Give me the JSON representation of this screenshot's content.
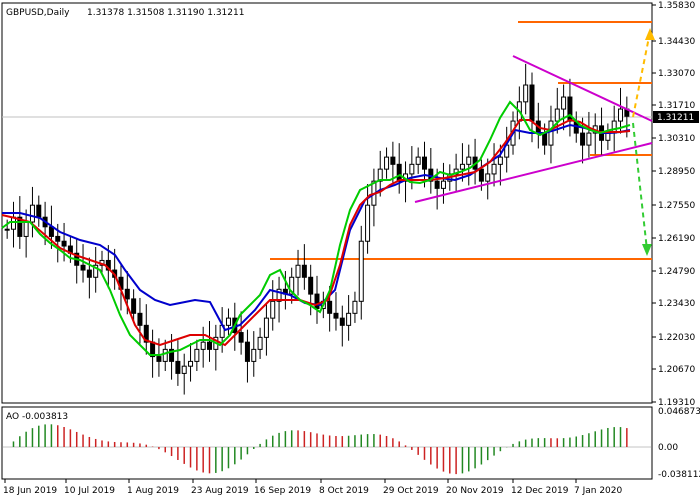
{
  "header": {
    "symbol": "GBPUSD,Daily",
    "ohlc": "1.31378 1.31508 1.31190 1.31211"
  },
  "ao_header": "AO -0.003813",
  "price_labels": [
    "1.35830",
    "1.34430",
    "1.33070",
    "1.31710",
    "1.30310",
    "1.28950",
    "1.27550",
    "1.26190",
    "1.24790",
    "1.23430",
    "1.22030",
    "1.20670",
    "1.19310"
  ],
  "ao_labels": [
    "0.046873",
    "0.00",
    "-0.038112"
  ],
  "current_price": "1.31211",
  "x_labels": [
    "18 Jun 2019",
    "10 Jul 2019",
    "1 Aug 2019",
    "23 Aug 2019",
    "16 Sep 2019",
    "8 Oct 2019",
    "29 Oct 2019",
    "20 Nov 2019",
    "12 Dec 2019",
    "7 Jan 2020"
  ],
  "colors": {
    "bull": "#000000",
    "bear": "#000000",
    "ma_fast": "#00cc00",
    "ma_mid": "#dd0000",
    "ma_slow": "#0000cc",
    "trend": "#cc00cc",
    "level": "#ff6600",
    "ao_up": "#228822",
    "ao_down": "#cc2222",
    "arrow_up": "#ffbb00",
    "arrow_down": "#33cc33"
  },
  "chart_data": {
    "type": "candlestick",
    "title": "GBPUSD,Daily",
    "ylim": [
      1.1931,
      1.3583
    ],
    "levels": [
      1.352,
      1.325,
      1.296,
      1.2525
    ],
    "candles_closes": [
      1.265,
      1.27,
      1.262,
      1.268,
      1.275,
      1.27,
      1.266,
      1.262,
      1.26,
      1.258,
      1.255,
      1.25,
      1.248,
      1.245,
      1.25,
      1.252,
      1.248,
      1.245,
      1.24,
      1.236,
      1.23,
      1.225,
      1.218,
      1.212,
      1.21,
      1.215,
      1.21,
      1.205,
      1.208,
      1.21,
      1.215,
      1.218,
      1.215,
      1.22,
      1.225,
      1.228,
      1.222,
      1.218,
      1.21,
      1.215,
      1.22,
      1.228,
      1.235,
      1.24,
      1.238,
      1.245,
      1.25,
      1.245,
      1.238,
      1.232,
      1.235,
      1.23,
      1.228,
      1.225,
      1.23,
      1.235,
      1.26,
      1.275,
      1.285,
      1.29,
      1.295,
      1.292,
      1.285,
      1.288,
      1.292,
      1.295,
      1.29,
      1.285,
      1.282,
      1.285,
      1.288,
      1.29,
      1.292,
      1.295,
      1.29,
      1.285,
      1.288,
      1.292,
      1.295,
      1.3,
      1.31,
      1.318,
      1.325,
      1.31,
      1.305,
      1.3,
      1.31,
      1.315,
      1.32,
      1.31,
      1.305,
      1.3,
      1.305,
      1.308,
      1.302,
      1.305,
      1.31,
      1.315,
      1.312
    ]
  },
  "ao_series": "Awesome Oscillator"
}
